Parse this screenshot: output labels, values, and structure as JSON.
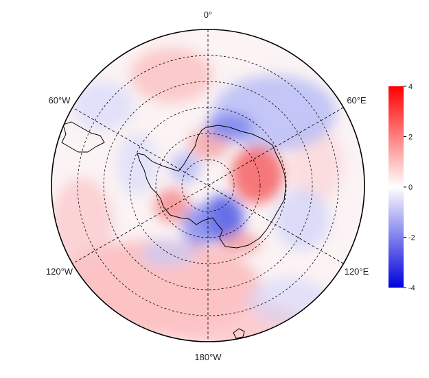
{
  "map": {
    "projection": "south-polar-stereographic",
    "longitude_labels": [
      {
        "text": "0°",
        "lon": 0
      },
      {
        "text": "60°E",
        "lon": 60
      },
      {
        "text": "120°E",
        "lon": 120
      },
      {
        "text": "180°W",
        "lon": 180
      },
      {
        "text": "120°W",
        "lon": -120
      },
      {
        "text": "60°W",
        "lon": -60
      }
    ],
    "latitude_circles_deg": [
      -80,
      -70,
      -60,
      -50,
      -40
    ],
    "outer_latitude_deg": -30,
    "gridline_style": "dashed",
    "coastline_color": "#000000"
  },
  "colorbar": {
    "min": -4,
    "max": 4,
    "ticks": [
      4,
      2,
      0,
      -2,
      -4
    ],
    "tick_labels": [
      "4",
      "2",
      "0",
      "-2",
      "-4"
    ],
    "colors": {
      "low": "#0000dd",
      "mid": "#ffffff",
      "high": "#ff0000"
    }
  }
}
